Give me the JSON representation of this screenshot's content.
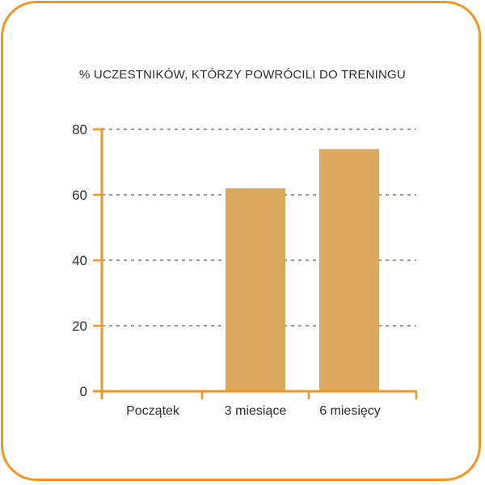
{
  "chart_data": {
    "type": "bar",
    "title": "% UCZESTNIKÓW, KTÓRZY POWRÓCILI DO TRENINGU",
    "xlabel": "",
    "ylabel": "",
    "categories": [
      "Początek",
      "3 miesiące",
      "6 miesięcy"
    ],
    "values": [
      0,
      62,
      74
    ],
    "ylim": [
      0,
      80
    ],
    "yticks": [
      0,
      20,
      40,
      60,
      80
    ],
    "grid": true,
    "bar_color": "#dba85e",
    "axis_color": "#f7941d"
  }
}
